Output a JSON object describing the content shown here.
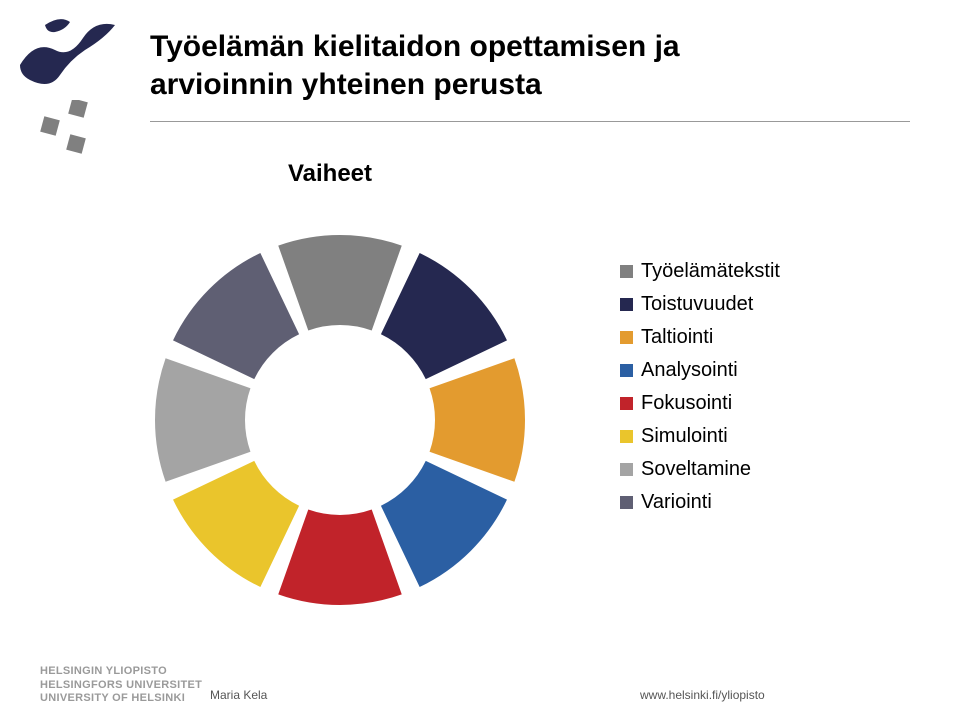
{
  "title_line1": "Työelämän kielitaidon opettamisen ja",
  "title_line2": "arvioinnin yhteinen perusta",
  "chart": {
    "title": "Vaiheet",
    "type": "donut",
    "inner_radius": 95,
    "outer_radius": 185,
    "gap_deg": 6,
    "background": "#ffffff",
    "segments": [
      {
        "label": "Työelämätekstit",
        "color": "#808080",
        "value": 1
      },
      {
        "label": "Toistuvuudet",
        "color": "#252850",
        "value": 1
      },
      {
        "label": "Taltiointi",
        "color": "#e39b2f",
        "value": 1
      },
      {
        "label": "Analysointi",
        "color": "#2b5fa3",
        "value": 1
      },
      {
        "label": "Fokusointi",
        "color": "#c1232a",
        "value": 1
      },
      {
        "label": "Simulointi",
        "color": "#eac52c",
        "value": 1
      },
      {
        "label": "Soveltamine",
        "color": "#a4a4a4",
        "value": 1
      },
      {
        "label": "Variointi",
        "color": "#5f5f73",
        "value": 1
      }
    ],
    "legend_fontsize": 20,
    "title_fontsize": 24
  },
  "logo": {
    "flame_color": "#252850",
    "square_colors": [
      "#808080",
      "#808080",
      "#808080"
    ]
  },
  "footer": {
    "uni_line1": "HELSINGIN YLIOPISTO",
    "uni_line2": "HELSINGFORS UNIVERSITET",
    "uni_line3": "UNIVERSITY OF HELSINKI",
    "author": "Maria Kela",
    "url": "www.helsinki.fi/yliopisto"
  }
}
